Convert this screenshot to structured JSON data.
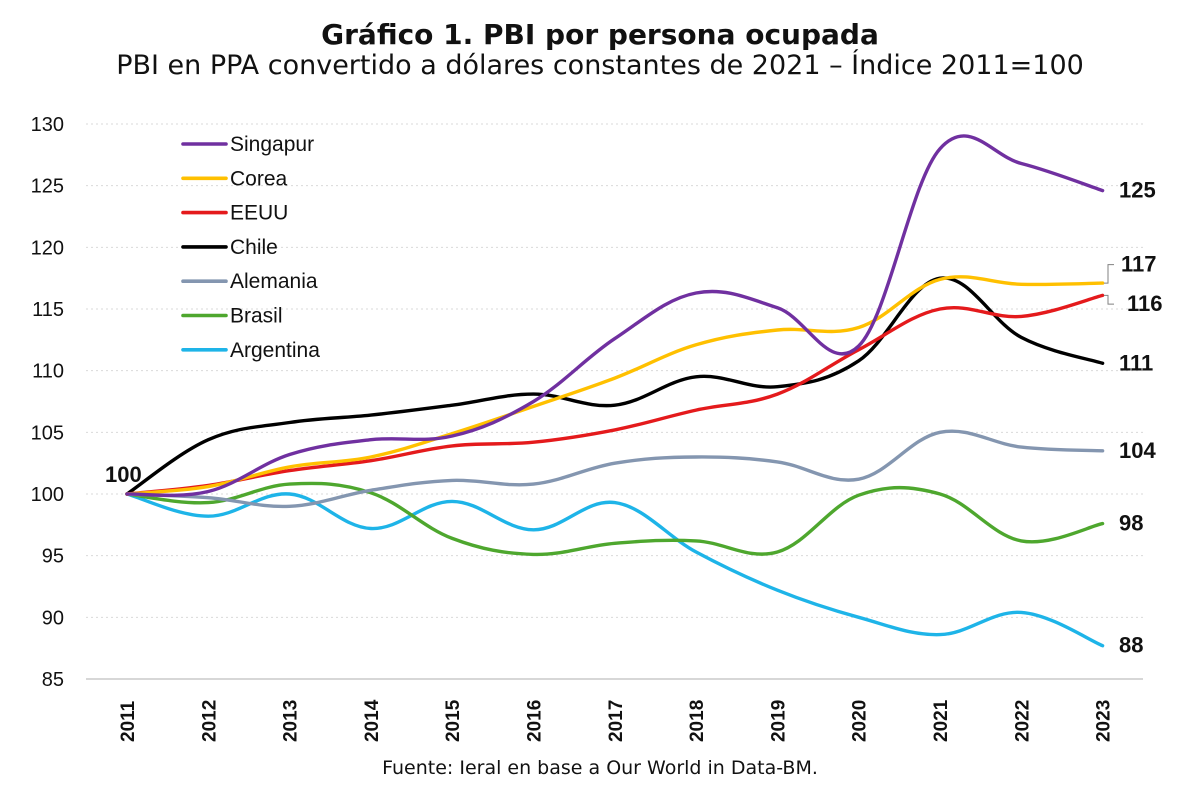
{
  "chart_data": {
    "type": "line",
    "title": "Gráfico 1. PBI por persona ocupada",
    "subtitle": "PBI en PPA convertido a dólares constantes de 2021 – Índice 2011=100",
    "source": "Fuente: Ieral en base a Our World in Data-BM.",
    "x": [
      "2011",
      "2012",
      "2013",
      "2014",
      "2015",
      "2016",
      "2017",
      "2018",
      "2019",
      "2020",
      "2021",
      "2022",
      "2023"
    ],
    "ylim": [
      85,
      130
    ],
    "yticks": [
      "85",
      "90",
      "95",
      "100",
      "105",
      "110",
      "115",
      "120",
      "125",
      "130"
    ],
    "grid": true,
    "legend_position": "top-left",
    "start_label": "100",
    "series": [
      {
        "name": "Singapur",
        "color": "#7030a0",
        "values": [
          100,
          100.2,
          103.2,
          104.4,
          104.7,
          107.5,
          112.6,
          116.3,
          115.1,
          112.0,
          128.0,
          126.8,
          124.6
        ],
        "end_label": "125"
      },
      {
        "name": "Corea",
        "color": "#ffc000",
        "values": [
          100,
          100.6,
          102.2,
          103.0,
          104.9,
          107.1,
          109.4,
          112.1,
          113.3,
          113.5,
          117.4,
          117.0,
          117.1
        ],
        "end_label": "117"
      },
      {
        "name": "EEUU",
        "color": "#e41a1c",
        "values": [
          100,
          100.7,
          101.9,
          102.7,
          103.9,
          104.2,
          105.2,
          106.8,
          108.1,
          111.7,
          115.0,
          114.4,
          116.1
        ],
        "end_label": "116"
      },
      {
        "name": "Chile",
        "color": "#000000",
        "values": [
          100,
          104.4,
          105.8,
          106.4,
          107.2,
          108.1,
          107.2,
          109.5,
          108.7,
          110.8,
          117.5,
          112.7,
          110.6
        ],
        "end_label": "111"
      },
      {
        "name": "Alemania",
        "color": "#8496b0",
        "values": [
          100,
          99.7,
          99.0,
          100.3,
          101.1,
          100.8,
          102.5,
          103.0,
          102.6,
          101.2,
          105.0,
          103.8,
          103.5
        ],
        "end_label": "104"
      },
      {
        "name": "Brasil",
        "color": "#4ea72e",
        "values": [
          100,
          99.3,
          100.8,
          100.1,
          96.4,
          95.1,
          96.0,
          96.2,
          95.3,
          99.9,
          100.0,
          96.2,
          97.6
        ],
        "end_label": "98"
      },
      {
        "name": "Argentina",
        "color": "#1eb4e8",
        "values": [
          100,
          98.2,
          100.0,
          97.2,
          99.4,
          97.1,
          99.3,
          95.3,
          92.2,
          90.0,
          88.6,
          90.4,
          87.7
        ],
        "end_label": "88"
      }
    ]
  }
}
